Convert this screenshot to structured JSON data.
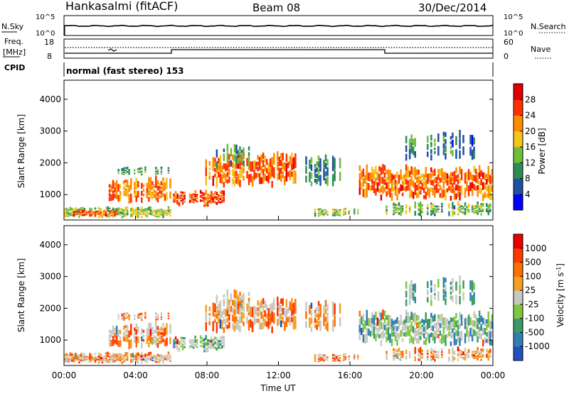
{
  "header": {
    "title": "Hankasalmi (fitACF)",
    "beam": "Beam 08",
    "date": "30/Dec/2014"
  },
  "sky_panel": {
    "left_label": "N.Sky",
    "right_label": "N.Search",
    "left_ticks": [
      "10^5",
      "10^0"
    ],
    "right_ticks": [
      "10^5",
      "10^0"
    ]
  },
  "freq_panel": {
    "left_label_1": "Freq.",
    "left_label_2": "[MHz]",
    "right_label": "Nave",
    "left_ticks": [
      "18",
      "8"
    ],
    "right_ticks": [
      "60",
      "0"
    ]
  },
  "cpid_panel": {
    "label": "CPID",
    "mode_text": "normal (fast stereo) 153"
  },
  "chart_data": [
    {
      "type": "heatmap",
      "name": "power",
      "ylabel": "Slant Range [km]",
      "yticks": [
        "1000",
        "2000",
        "3000",
        "4000"
      ],
      "ylim": [
        200,
        4600
      ],
      "xlim": [
        0,
        24
      ],
      "colorbar_label": "Power [dB]",
      "colorbar_ticks": [
        "4",
        "8",
        "12",
        "16",
        "20",
        "24",
        "28"
      ],
      "colors": [
        "#0000ff",
        "#1f4fa0",
        "#2e8b57",
        "#6fbe3c",
        "#f5c518",
        "#ff8c00",
        "#ff3000",
        "#e00000"
      ]
    },
    {
      "type": "heatmap",
      "name": "velocity",
      "ylabel": "Slant Range [km]",
      "yticks": [
        "1000",
        "2000",
        "3000",
        "4000"
      ],
      "ylim": [
        200,
        4600
      ],
      "xlim": [
        0,
        24
      ],
      "xlabel": "Time UT",
      "xticks": [
        "00:00",
        "04:00",
        "08:00",
        "12:00",
        "16:00",
        "20:00",
        "00:00"
      ],
      "colorbar_label": "Velocity [m s",
      "colorbar_label_sup": "-1",
      "colorbar_label_end": "]",
      "colorbar_ticks": [
        "1000",
        "500",
        "100",
        "25",
        "-25",
        "-100",
        "-500",
        "-1000"
      ],
      "colors": [
        "#2050c0",
        "#2f7fb0",
        "#3a9a6a",
        "#7dc840",
        "#c8c8c0",
        "#f5a020",
        "#ff7000",
        "#ff3800",
        "#e80000"
      ]
    }
  ]
}
